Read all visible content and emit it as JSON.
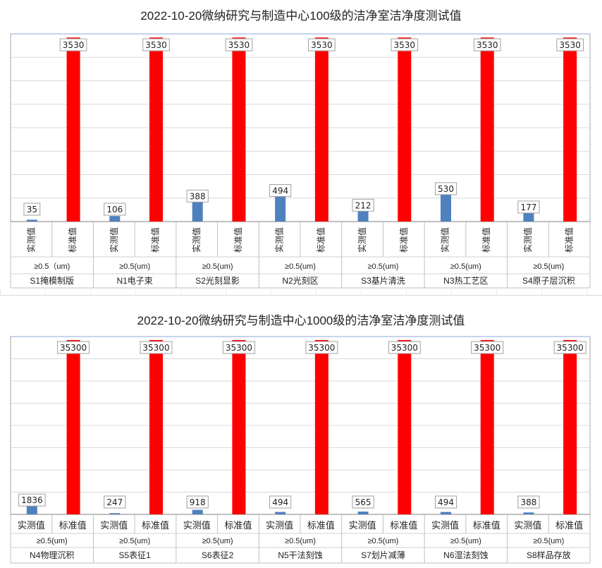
{
  "chart_data": [
    {
      "type": "bar",
      "title": "2022-10-20微纳研究与制造中心100级的洁净室洁净度测试值",
      "series": [
        {
          "name": "实测值",
          "values": [
            35,
            106,
            388,
            494,
            212,
            530,
            177
          ],
          "color": "#4f81bd"
        },
        {
          "name": "标准值",
          "values": [
            3530,
            3530,
            3530,
            3530,
            3530,
            3530,
            3530
          ],
          "color": "#ff0000"
        }
      ],
      "size_labels": [
        "≥0.5（um)",
        "≥0.5(um)",
        "≥0.5(um)",
        "≥0.5(um)",
        "≥0.5(um)",
        "≥0.5(um)",
        "≥0.5(um)"
      ],
      "categories": [
        "S1掩模制版",
        "N1电子束",
        "S2光刻显影",
        "N2光刻区",
        "S3基片清洗",
        "N3热工艺区",
        "S4原子层沉积"
      ],
      "label_orientation": "vertical",
      "ylim": [
        0,
        3600
      ],
      "grid": true
    },
    {
      "type": "bar",
      "title": "2022-10-20微纳研究与制造中心1000级的洁净室洁净度测试值",
      "series": [
        {
          "name": "实测值",
          "values": [
            1836,
            247,
            918,
            494,
            565,
            494,
            388
          ],
          "color": "#4f81bd"
        },
        {
          "name": "标准值",
          "values": [
            35300,
            35300,
            35300,
            35300,
            35300,
            35300,
            35300
          ],
          "color": "#ff0000"
        }
      ],
      "size_labels": [
        "≥0.5(um)",
        "≥0.5(um)",
        "≥0.5(um)",
        "≥0.5(um)",
        "≥0.5(um)",
        "≥0.5(um)",
        "≥0.5(um)"
      ],
      "categories": [
        "N4物理沉积",
        "S5表征1",
        "S6表征2",
        "N5干法刻蚀",
        "S7划片减薄",
        "N6湿法刻蚀",
        "S8样品存放"
      ],
      "label_orientation": "horizontal",
      "ylim": [
        0,
        36000
      ],
      "grid": true
    }
  ]
}
